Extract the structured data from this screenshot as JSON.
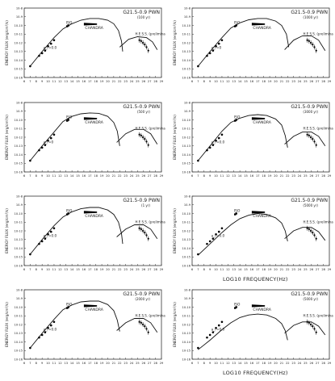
{
  "chart_data": [
    {
      "type": "scatter",
      "title": "G21.5-0.9 PWN",
      "subtitle": "(100 yr)",
      "ylabel": "ENERGY FLUX (erg/cm²/s)",
      "yexp_range": [
        -16,
        -8
      ],
      "xlim": [
        6,
        29
      ],
      "labels": {
        "iso": "ISO",
        "chandra": "CHANDRA",
        "slope": "a_r=0.0",
        "hess": "H.E.S.S. (preliminary)"
      },
      "radio": [
        [
          7,
          -14.7
        ],
        [
          8.5,
          -13.5
        ],
        [
          9,
          -13.2
        ],
        [
          9.5,
          -12.9
        ],
        [
          10,
          -12.4
        ],
        [
          10.5,
          -12.1
        ],
        [
          11,
          -11.7
        ]
      ],
      "iso": [
        [
          13.2,
          -10.1
        ],
        [
          13.4,
          -10.0
        ]
      ],
      "chandra_x": [
        16,
        18.2
      ],
      "chandra_y": -9.85,
      "hess": [
        [
          25.3,
          -11.7
        ],
        [
          25.6,
          -11.8
        ],
        [
          25.9,
          -12.0
        ],
        [
          26.2,
          -12.2
        ],
        [
          26.5,
          -12.5
        ],
        [
          26.8,
          -12.9
        ]
      ],
      "sync": [
        [
          7,
          -14.7
        ],
        [
          9,
          -13.0
        ],
        [
          11,
          -11.4
        ],
        [
          12.5,
          -10.4
        ],
        [
          14,
          -9.8
        ],
        [
          15.5,
          -9.4
        ],
        [
          17,
          -9.2
        ],
        [
          18.5,
          -9.2
        ],
        [
          20,
          -9.4
        ],
        [
          21,
          -9.8
        ],
        [
          21.8,
          -10.6
        ],
        [
          22.3,
          -11.8
        ],
        [
          22.5,
          -13
        ]
      ],
      "ic": [
        [
          22,
          -12.5
        ],
        [
          23.5,
          -11.6
        ],
        [
          25,
          -11.3
        ],
        [
          26.5,
          -11.4
        ],
        [
          27.5,
          -11.9
        ],
        [
          28.3,
          -12.8
        ]
      ],
      "xlabel": ""
    },
    {
      "type": "scatter",
      "title": "G21.5-0.9 PWN",
      "subtitle": "(1000 yr)",
      "ylabel": "ENERGY FLUX (erg/cm²/s)",
      "yexp_range": [
        -16,
        -8
      ],
      "xlim": [
        6,
        29
      ],
      "labels": {
        "iso": "ISO",
        "chandra": "CHANDRA",
        "slope": "a_r=0",
        "hess": "H.E.S.S. (preliminary)"
      },
      "radio": [
        [
          7,
          -14.7
        ],
        [
          8.5,
          -13.5
        ],
        [
          9,
          -13.2
        ],
        [
          9.5,
          -12.9
        ],
        [
          10,
          -12.4
        ],
        [
          10.5,
          -12.1
        ],
        [
          11,
          -11.7
        ]
      ],
      "iso": [
        [
          13.2,
          -10.1
        ],
        [
          13.4,
          -10.0
        ]
      ],
      "chandra_x": [
        16,
        18.2
      ],
      "chandra_y": -9.85,
      "hess": [
        [
          25.3,
          -11.7
        ],
        [
          25.6,
          -11.8
        ],
        [
          25.9,
          -12.0
        ],
        [
          26.2,
          -12.2
        ],
        [
          26.5,
          -12.5
        ],
        [
          26.8,
          -12.9
        ]
      ],
      "sync": [
        [
          7,
          -14.7
        ],
        [
          9,
          -13.0
        ],
        [
          11,
          -11.4
        ],
        [
          12.5,
          -10.3
        ],
        [
          14,
          -9.7
        ],
        [
          15.5,
          -9.35
        ],
        [
          17,
          -9.2
        ],
        [
          18.5,
          -9.2
        ],
        [
          20,
          -9.5
        ],
        [
          21,
          -10.0
        ],
        [
          21.8,
          -11.0
        ],
        [
          22.2,
          -12.5
        ]
      ],
      "ic": [
        [
          21.5,
          -12.8
        ],
        [
          23,
          -11.7
        ],
        [
          24.5,
          -11.2
        ],
        [
          26,
          -11.2
        ],
        [
          27.2,
          -11.7
        ],
        [
          28.3,
          -12.9
        ]
      ],
      "xlabel": ""
    },
    {
      "type": "scatter",
      "title": "G21.5-0.9 PWN",
      "subtitle": "(500 yr)",
      "ylabel": "ENERGY FLUX (erg/cm²/s)",
      "yexp_range": [
        -16,
        -8
      ],
      "xlim": [
        6,
        29
      ],
      "labels": {
        "iso": "ISO",
        "chandra": "CHANDRA",
        "slope": "a_r=0",
        "hess": "H.E.S.S. (preliminary)"
      },
      "radio": [
        [
          7,
          -14.7
        ],
        [
          8.5,
          -13.5
        ],
        [
          9,
          -13.2
        ],
        [
          9.5,
          -12.9
        ],
        [
          10,
          -12.4
        ],
        [
          10.5,
          -12.1
        ],
        [
          11,
          -11.7
        ]
      ],
      "iso": [
        [
          13.2,
          -10.1
        ],
        [
          13.4,
          -10.0
        ]
      ],
      "chandra_x": [
        16,
        18.2
      ],
      "chandra_y": -9.85,
      "hess": [
        [
          25.3,
          -11.7
        ],
        [
          25.6,
          -11.8
        ],
        [
          25.9,
          -12.0
        ],
        [
          26.2,
          -12.2
        ],
        [
          26.5,
          -12.5
        ],
        [
          26.8,
          -12.9
        ]
      ],
      "sync": [
        [
          7,
          -14.7
        ],
        [
          9,
          -13.0
        ],
        [
          11,
          -11.4
        ],
        [
          12.5,
          -10.2
        ],
        [
          14,
          -9.6
        ],
        [
          15.5,
          -9.3
        ],
        [
          17,
          -9.2
        ],
        [
          18.5,
          -9.25
        ],
        [
          20,
          -9.6
        ],
        [
          21,
          -10.3
        ],
        [
          21.6,
          -11.3
        ],
        [
          22,
          -13
        ]
      ],
      "ic": [
        [
          21.5,
          -12.6
        ],
        [
          23,
          -11.6
        ],
        [
          24.5,
          -11.1
        ],
        [
          26,
          -11.1
        ],
        [
          27.2,
          -11.6
        ],
        [
          28.3,
          -12.8
        ]
      ],
      "xlabel": ""
    },
    {
      "type": "scatter",
      "title": "G21.5-0.9 PWN",
      "subtitle": "(3000 yr)",
      "ylabel": "ENERGY FLUX (erg/cm²/s)",
      "yexp_range": [
        -16,
        -8
      ],
      "xlim": [
        6,
        29
      ],
      "labels": {
        "iso": "ISO",
        "chandra": "CHANDRA",
        "slope": "a_r=0.0",
        "hess": "H.E.S.S. (preliminary)"
      },
      "radio": [
        [
          7,
          -14.7
        ],
        [
          8.5,
          -13.5
        ],
        [
          9,
          -13.2
        ],
        [
          9.5,
          -12.9
        ],
        [
          10,
          -12.4
        ],
        [
          10.5,
          -12.1
        ],
        [
          11,
          -11.7
        ]
      ],
      "iso": [
        [
          13.2,
          -10.1
        ],
        [
          13.4,
          -10.0
        ]
      ],
      "chandra_x": [
        16,
        18.2
      ],
      "chandra_y": -9.85,
      "hess": [
        [
          25.3,
          -11.7
        ],
        [
          25.6,
          -11.8
        ],
        [
          25.9,
          -12.0
        ],
        [
          26.2,
          -12.2
        ],
        [
          26.5,
          -12.5
        ],
        [
          26.8,
          -12.9
        ]
      ],
      "sync": [
        [
          7,
          -14.7
        ],
        [
          9,
          -13.0
        ],
        [
          11,
          -11.3
        ],
        [
          12.5,
          -10.3
        ],
        [
          14,
          -9.8
        ],
        [
          15.5,
          -9.5
        ],
        [
          17,
          -9.4
        ],
        [
          18.5,
          -9.5
        ],
        [
          20,
          -9.9
        ],
        [
          21,
          -10.6
        ],
        [
          21.6,
          -11.8
        ],
        [
          22,
          -13.2
        ]
      ],
      "ic": [
        [
          21.5,
          -12.8
        ],
        [
          23,
          -11.9
        ],
        [
          24.5,
          -11.4
        ],
        [
          26,
          -11.4
        ],
        [
          27.2,
          -11.9
        ],
        [
          28.3,
          -13
        ]
      ],
      "xlabel": ""
    },
    {
      "type": "scatter",
      "title": "G21.5-0.9 PWN",
      "subtitle": "(1 yr)",
      "ylabel": "ENERGY FLUX (erg/cm²/s)",
      "yexp_range": [
        -16,
        -8
      ],
      "xlim": [
        6,
        29
      ],
      "labels": {
        "iso": "ISO",
        "chandra": "CHANDRA",
        "slope": "a_r=0.0",
        "hess": "H.E.S.S. (preliminary)"
      },
      "radio": [
        [
          7,
          -14.7
        ],
        [
          8.5,
          -13.5
        ],
        [
          9,
          -13.2
        ],
        [
          9.5,
          -12.9
        ],
        [
          10,
          -12.4
        ],
        [
          10.5,
          -12.1
        ],
        [
          11,
          -11.7
        ]
      ],
      "iso": [
        [
          13.2,
          -10.1
        ],
        [
          13.4,
          -10.0
        ]
      ],
      "chandra_x": [
        16,
        18.2
      ],
      "chandra_y": -9.85,
      "hess": [
        [
          25.3,
          -11.7
        ],
        [
          25.6,
          -11.8
        ],
        [
          25.9,
          -12.0
        ],
        [
          26.2,
          -12.2
        ],
        [
          26.5,
          -12.5
        ],
        [
          26.8,
          -12.9
        ]
      ],
      "sync": [
        [
          7,
          -14.7
        ],
        [
          9,
          -13.0
        ],
        [
          11,
          -11.4
        ],
        [
          12.5,
          -10.4
        ],
        [
          14,
          -9.8
        ],
        [
          15.5,
          -9.45
        ],
        [
          17,
          -9.3
        ],
        [
          18.5,
          -9.3
        ],
        [
          20,
          -9.6
        ],
        [
          21,
          -10.1
        ],
        [
          21.8,
          -11.0
        ],
        [
          22.3,
          -12.3
        ],
        [
          22.5,
          -13.5
        ]
      ],
      "ic": [
        [
          21.5,
          -12.7
        ],
        [
          23,
          -11.8
        ],
        [
          24.5,
          -11.3
        ],
        [
          26,
          -11.3
        ],
        [
          27.2,
          -11.8
        ],
        [
          28.3,
          -12.9
        ]
      ],
      "xlabel": ""
    },
    {
      "type": "scatter",
      "title": "G21.5-0.9 PWN",
      "subtitle": "(5000 yr)",
      "ylabel": "ENERGY FLUX (erg/cm²/s)",
      "yexp_range": [
        -16,
        -8
      ],
      "xlim": [
        6,
        29
      ],
      "labels": {
        "iso": "ISO",
        "chandra": "CHANDRA",
        "slope": "a_r=0.0",
        "hess": "H.E.S.S. (preliminary)"
      },
      "radio": [
        [
          7,
          -14.7
        ],
        [
          8.5,
          -13.5
        ],
        [
          9,
          -13.2
        ],
        [
          9.5,
          -12.9
        ],
        [
          10,
          -12.4
        ],
        [
          10.5,
          -12.1
        ],
        [
          11,
          -11.7
        ]
      ],
      "iso": [
        [
          13.2,
          -10.1
        ],
        [
          13.4,
          -10.0
        ]
      ],
      "chandra_x": [
        16,
        18.2
      ],
      "chandra_y": -9.85,
      "hess": [
        [
          25.3,
          -11.7
        ],
        [
          25.6,
          -11.8
        ],
        [
          25.9,
          -12.0
        ],
        [
          26.2,
          -12.2
        ],
        [
          26.5,
          -12.5
        ],
        [
          26.8,
          -12.9
        ]
      ],
      "sync": [
        [
          7,
          -14.8
        ],
        [
          9,
          -13.5
        ],
        [
          11,
          -12.2
        ],
        [
          12.5,
          -11.3
        ],
        [
          14,
          -10.6
        ],
        [
          15.5,
          -10.2
        ],
        [
          17,
          -10.0
        ],
        [
          18.5,
          -10.1
        ],
        [
          20,
          -10.5
        ],
        [
          21,
          -11.1
        ],
        [
          21.6,
          -12.0
        ],
        [
          22,
          -13.2
        ]
      ],
      "ic": [
        [
          21.5,
          -12.9
        ],
        [
          23,
          -12.0
        ],
        [
          24.5,
          -11.6
        ],
        [
          26,
          -11.6
        ],
        [
          27.2,
          -12.1
        ],
        [
          28.3,
          -13.1
        ]
      ],
      "xlabel": "LOG10 FREQUENCY(Hz)"
    },
    {
      "type": "scatter",
      "title": "G21.5-0.9 PWN",
      "subtitle": "(2000 yr)",
      "ylabel": "ENERGY FLUX (erg/cm²/s)",
      "yexp_range": [
        -16,
        -8
      ],
      "xlim": [
        6,
        29
      ],
      "labels": {
        "iso": "ISO",
        "chandra": "CHANDRA",
        "slope": "a_r=0.0",
        "hess": "H.E.S.S. (preliminary)"
      },
      "radio": [
        [
          7,
          -14.7
        ],
        [
          8.5,
          -13.5
        ],
        [
          9,
          -13.2
        ],
        [
          9.5,
          -12.9
        ],
        [
          10,
          -12.4
        ],
        [
          10.5,
          -12.1
        ],
        [
          11,
          -11.7
        ]
      ],
      "iso": [
        [
          13.2,
          -10.1
        ],
        [
          13.4,
          -10.0
        ]
      ],
      "chandra_x": [
        16,
        18.2
      ],
      "chandra_y": -9.85,
      "hess": [
        [
          25.3,
          -11.7
        ],
        [
          25.6,
          -11.8
        ],
        [
          25.9,
          -12.0
        ],
        [
          26.2,
          -12.2
        ],
        [
          26.5,
          -12.5
        ],
        [
          26.8,
          -12.9
        ]
      ],
      "sync": [
        [
          7,
          -14.7
        ],
        [
          9,
          -13.0
        ],
        [
          11,
          -11.4
        ],
        [
          12.5,
          -10.3
        ],
        [
          14,
          -9.75
        ],
        [
          15.5,
          -9.4
        ],
        [
          17,
          -9.3
        ],
        [
          18.5,
          -9.3
        ],
        [
          20,
          -9.7
        ],
        [
          21,
          -10.4
        ],
        [
          21.6,
          -11.5
        ],
        [
          22,
          -12.8
        ]
      ],
      "ic": [
        [
          21.5,
          -12.7
        ],
        [
          23,
          -11.8
        ],
        [
          24.5,
          -11.3
        ],
        [
          26,
          -11.3
        ],
        [
          27.2,
          -11.8
        ],
        [
          28.3,
          -12.9
        ]
      ],
      "xlabel": ""
    },
    {
      "type": "scatter",
      "title": "G21.5-0.9 PWN",
      "subtitle": "(5000 yr)",
      "ylabel": "ENERGY FLUX (erg/cm²/s)",
      "yexp_range": [
        -16,
        -8
      ],
      "xlim": [
        6,
        29
      ],
      "labels": {
        "iso": "ISO",
        "chandra": "CHANDRA",
        "slope": "a_r=0.0",
        "hess": "H.E.S.S. (preliminary)"
      },
      "radio": [
        [
          7,
          -14.7
        ],
        [
          8.5,
          -13.5
        ],
        [
          9,
          -13.2
        ],
        [
          9.5,
          -12.9
        ],
        [
          10,
          -12.4
        ],
        [
          10.5,
          -12.1
        ],
        [
          11,
          -11.7
        ]
      ],
      "iso": [
        [
          13.2,
          -10.1
        ],
        [
          13.4,
          -10.0
        ]
      ],
      "chandra_x": [
        16,
        18.2
      ],
      "chandra_y": -9.85,
      "hess": [
        [
          25.3,
          -11.7
        ],
        [
          25.6,
          -11.8
        ],
        [
          25.9,
          -12.0
        ],
        [
          26.2,
          -12.2
        ],
        [
          26.5,
          -12.5
        ],
        [
          26.8,
          -12.9
        ]
      ],
      "sync": [
        [
          7,
          -14.9
        ],
        [
          9,
          -13.8
        ],
        [
          11,
          -12.6
        ],
        [
          12.5,
          -11.8
        ],
        [
          14,
          -11.2
        ],
        [
          15.5,
          -10.9
        ],
        [
          17,
          -10.8
        ],
        [
          18.5,
          -10.9
        ],
        [
          20,
          -11.3
        ],
        [
          21,
          -11.9
        ],
        [
          21.6,
          -12.7
        ],
        [
          22,
          -13.8
        ]
      ],
      "ic": [
        [
          21.5,
          -13.0
        ],
        [
          23,
          -12.1
        ],
        [
          24.5,
          -11.7
        ],
        [
          26,
          -11.7
        ],
        [
          27.2,
          -12.2
        ],
        [
          28.3,
          -13.2
        ]
      ],
      "xlabel": "LOG10 FREQUENCY(Hz)"
    }
  ]
}
